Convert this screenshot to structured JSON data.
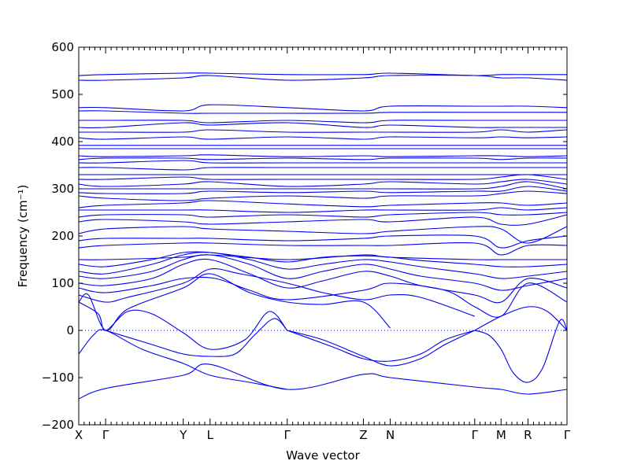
{
  "chart_data": {
    "type": "line",
    "title": "",
    "xlabel": "Wave vector",
    "ylabel": "Frequency",
    "ylabel_unit": "(cm⁻¹)",
    "ylim": [
      -200,
      600
    ],
    "yticks": [
      -200,
      -100,
      0,
      100,
      200,
      300,
      400,
      500,
      600
    ],
    "xlim": [
      0,
      1
    ],
    "high_symmetry_points": [
      {
        "label": "X",
        "x": 0.0
      },
      {
        "label": "Γ",
        "x": 0.055
      },
      {
        "label": "Y",
        "x": 0.214
      },
      {
        "label": "L",
        "x": 0.269
      },
      {
        "label": "Γ",
        "x": 0.427
      },
      {
        "label": "Z",
        "x": 0.583
      },
      {
        "label": "N",
        "x": 0.638
      },
      {
        "label": "Γ",
        "x": 0.811
      },
      {
        "label": "M",
        "x": 0.865
      },
      {
        "label": "R",
        "x": 0.92
      },
      {
        "label": "Γ",
        "x": 1.0
      }
    ],
    "zero_line": true,
    "grid": false,
    "series_color": "#0000ee",
    "zero_line_color": "#0000ee",
    "series": [
      {
        "x": [
          0,
          0.055,
          0.214,
          0.269,
          0.427,
          0.583,
          0.638,
          0.811,
          0.865,
          0.92,
          1.0
        ],
        "values": [
          -145,
          -123,
          -95,
          -72,
          -125,
          -93,
          -100,
          -120,
          -125,
          -135,
          -125
        ]
      },
      {
        "x": [
          0,
          0.03,
          0.055,
          0.13,
          0.214,
          0.269,
          0.35,
          0.427
        ],
        "values": [
          -50,
          -10,
          0,
          -40,
          -70,
          -95,
          -110,
          -125
        ]
      },
      {
        "x": [
          0.055,
          0.15,
          0.214,
          0.269,
          0.32,
          0.36,
          0.4,
          0.427
        ],
        "values": [
          0,
          -30,
          -50,
          -55,
          -50,
          -10,
          25,
          0
        ]
      },
      {
        "x": [
          0.427,
          0.5,
          0.583,
          0.638,
          0.7,
          0.75,
          0.811
        ],
        "values": [
          0,
          -20,
          -55,
          -75,
          -60,
          -30,
          0
        ]
      },
      {
        "x": [
          0.427,
          0.52,
          0.583,
          0.638,
          0.7,
          0.75,
          0.811
        ],
        "values": [
          0,
          -35,
          -60,
          -65,
          -50,
          -20,
          0
        ]
      },
      {
        "x": [
          0.811,
          0.84,
          0.865,
          0.89,
          0.92,
          0.95,
          0.985,
          1.0
        ],
        "values": [
          0,
          -10,
          -40,
          -90,
          -110,
          -80,
          20,
          0
        ]
      },
      {
        "x": [
          0.811,
          0.865,
          0.92,
          0.96,
          1.0
        ],
        "values": [
          0,
          30,
          50,
          40,
          0
        ]
      },
      {
        "x": [
          0,
          0.04,
          0.055,
          0.1,
          0.15,
          0.214,
          0.269,
          0.34,
          0.39,
          0.427
        ],
        "values": [
          60,
          35,
          0,
          40,
          35,
          -5,
          -40,
          -20,
          40,
          0
        ]
      },
      {
        "x": [
          0,
          0.02,
          0.055,
          0.1,
          0.214,
          0.269,
          0.35,
          0.427,
          0.5,
          0.583,
          0.638
        ],
        "values": [
          60,
          75,
          0,
          45,
          90,
          120,
          80,
          60,
          55,
          60,
          5
        ]
      },
      {
        "x": [
          0,
          0.055,
          0.1,
          0.214,
          0.269,
          0.33,
          0.427,
          0.5,
          0.583,
          0.638,
          0.7,
          0.811
        ],
        "values": [
          75,
          60,
          70,
          100,
          130,
          120,
          100,
          80,
          65,
          75,
          70,
          30
        ]
      },
      {
        "x": [
          0,
          0.055,
          0.15,
          0.214,
          0.28,
          0.35,
          0.427,
          0.583,
          0.638,
          0.75,
          0.811,
          0.865,
          0.92,
          1.0
        ],
        "values": [
          90,
          80,
          95,
          110,
          110,
          85,
          65,
          85,
          100,
          85,
          50,
          30,
          100,
          60
        ]
      },
      {
        "x": [
          0,
          0.055,
          0.15,
          0.214,
          0.269,
          0.35,
          0.427,
          0.5,
          0.583,
          0.638,
          0.7,
          0.811,
          0.865,
          0.92,
          1.0
        ],
        "values": [
          100,
          95,
          110,
          140,
          150,
          120,
          90,
          105,
          125,
          115,
          95,
          75,
          60,
          110,
          90
        ]
      },
      {
        "x": [
          0,
          0.055,
          0.15,
          0.214,
          0.269,
          0.35,
          0.427,
          0.5,
          0.583,
          0.638,
          0.7,
          0.811,
          0.865,
          0.92,
          1.0
        ],
        "values": [
          115,
          110,
          125,
          150,
          160,
          140,
          110,
          125,
          140,
          130,
          115,
          100,
          85,
          95,
          110
        ]
      },
      {
        "x": [
          0,
          0.055,
          0.15,
          0.214,
          0.269,
          0.35,
          0.427,
          0.5,
          0.583,
          0.638,
          0.7,
          0.811,
          0.865,
          0.92,
          1.0
        ],
        "values": [
          125,
          120,
          140,
          160,
          165,
          150,
          130,
          140,
          150,
          145,
          135,
          120,
          110,
          115,
          125
        ]
      },
      {
        "x": [
          0,
          0.055,
          0.15,
          0.214,
          0.269,
          0.35,
          0.427,
          0.5,
          0.583,
          0.638,
          0.7,
          0.811,
          0.865,
          0.92,
          1.0
        ],
        "values": [
          140,
          135,
          150,
          165,
          165,
          155,
          145,
          155,
          158,
          155,
          148,
          140,
          135,
          135,
          140
        ]
      },
      {
        "x": [
          0,
          0.055,
          0.214,
          0.269,
          0.427,
          0.583,
          0.638,
          0.811,
          0.865,
          0.92,
          1.0
        ],
        "values": [
          150,
          150,
          155,
          160,
          150,
          160,
          155,
          150,
          150,
          150,
          150
        ]
      },
      {
        "x": [
          0,
          0.055,
          0.214,
          0.269,
          0.427,
          0.583,
          0.638,
          0.811,
          0.865,
          0.92,
          1.0
        ],
        "values": [
          175,
          180,
          185,
          185,
          180,
          180,
          180,
          185,
          160,
          180,
          180
        ]
      },
      {
        "x": [
          0,
          0.055,
          0.214,
          0.269,
          0.427,
          0.583,
          0.638,
          0.811,
          0.865,
          0.92,
          1.0
        ],
        "values": [
          190,
          195,
          195,
          195,
          190,
          195,
          200,
          200,
          175,
          190,
          200
        ]
      },
      {
        "x": [
          0,
          0.055,
          0.214,
          0.269,
          0.427,
          0.583,
          0.638,
          0.811,
          0.865,
          0.92,
          1.0
        ],
        "values": [
          205,
          215,
          220,
          215,
          210,
          205,
          210,
          220,
          215,
          185,
          220
        ]
      },
      {
        "x": [
          0,
          0.055,
          0.214,
          0.269,
          0.427,
          0.583,
          0.638,
          0.811,
          0.865,
          0.92,
          1.0
        ],
        "values": [
          230,
          235,
          230,
          225,
          230,
          235,
          230,
          240,
          225,
          225,
          245
        ]
      },
      {
        "x": [
          0,
          0.055,
          0.214,
          0.269,
          0.427,
          0.583,
          0.638,
          0.811,
          0.865,
          0.92,
          1.0
        ],
        "values": [
          240,
          245,
          245,
          240,
          245,
          240,
          245,
          250,
          245,
          245,
          250
        ]
      },
      {
        "x": [
          0,
          0.055,
          0.214,
          0.269,
          0.427,
          0.583,
          0.638,
          0.811,
          0.865,
          0.92,
          1.0
        ],
        "values": [
          255,
          255,
          255,
          255,
          250,
          255,
          255,
          255,
          260,
          255,
          260
        ]
      },
      {
        "x": [
          0,
          0.055,
          0.214,
          0.269,
          0.427,
          0.583,
          0.638,
          0.811,
          0.865,
          0.92,
          1.0
        ],
        "values": [
          260,
          265,
          270,
          275,
          268,
          262,
          265,
          270,
          270,
          265,
          270
        ]
      },
      {
        "x": [
          0,
          0.055,
          0.214,
          0.269,
          0.427,
          0.583,
          0.638,
          0.811,
          0.865,
          0.92,
          1.0
        ],
        "values": [
          285,
          280,
          275,
          280,
          285,
          280,
          285,
          285,
          290,
          295,
          290
        ]
      },
      {
        "x": [
          0,
          0.055,
          0.214,
          0.269,
          0.427,
          0.583,
          0.638,
          0.811,
          0.865,
          0.92,
          1.0
        ],
        "values": [
          292,
          290,
          290,
          295,
          292,
          295,
          292,
          295,
          295,
          305,
          295
        ]
      },
      {
        "x": [
          0,
          0.055,
          0.214,
          0.269,
          0.427,
          0.583,
          0.638,
          0.811,
          0.865,
          0.92,
          1.0
        ],
        "values": [
          300,
          300,
          300,
          300,
          300,
          300,
          300,
          300,
          305,
          315,
          300
        ]
      },
      {
        "x": [
          0,
          0.055,
          0.214,
          0.269,
          0.427,
          0.583,
          0.638,
          0.811,
          0.865,
          0.92,
          1.0
        ],
        "values": [
          310,
          305,
          310,
          315,
          305,
          310,
          315,
          310,
          315,
          320,
          310
        ]
      },
      {
        "x": [
          0,
          0.055,
          0.214,
          0.269,
          0.427,
          0.583,
          0.638,
          0.811,
          0.865,
          0.92,
          1.0
        ],
        "values": [
          320,
          320,
          325,
          320,
          320,
          320,
          320,
          320,
          325,
          330,
          320
        ]
      },
      {
        "x": [
          0,
          0.055,
          0.214,
          0.269,
          0.427,
          0.583,
          0.638,
          0.811,
          0.865,
          0.92,
          1.0
        ],
        "values": [
          330,
          330,
          330,
          330,
          330,
          330,
          330,
          330,
          330,
          330,
          330
        ]
      },
      {
        "x": [
          0,
          0.055,
          0.214,
          0.269,
          0.427,
          0.583,
          0.638,
          0.811,
          0.865,
          0.92,
          1.0
        ],
        "values": [
          345,
          345,
          340,
          345,
          345,
          345,
          345,
          345,
          345,
          345,
          345
        ]
      },
      {
        "x": [
          0,
          0.055,
          0.214,
          0.269,
          0.427,
          0.583,
          0.638,
          0.811,
          0.865,
          0.92,
          1.0
        ],
        "values": [
          355,
          355,
          360,
          355,
          355,
          355,
          355,
          355,
          355,
          355,
          355
        ]
      },
      {
        "x": [
          0,
          0.055,
          0.214,
          0.269,
          0.427,
          0.583,
          0.638,
          0.811,
          0.865,
          0.92,
          1.0
        ],
        "values": [
          362,
          365,
          365,
          362,
          365,
          362,
          365,
          365,
          362,
          365,
          365
        ]
      },
      {
        "x": [
          0,
          0.055,
          0.214,
          0.269,
          0.427,
          0.583,
          0.638,
          0.811,
          0.865,
          0.92,
          1.0
        ],
        "values": [
          370,
          368,
          370,
          372,
          368,
          370,
          368,
          370,
          370,
          368,
          370
        ]
      },
      {
        "x": [
          0,
          0.055,
          0.214,
          0.269,
          0.427,
          0.583,
          0.638,
          0.811,
          0.865,
          0.92,
          1.0
        ],
        "values": [
          385,
          385,
          385,
          385,
          385,
          385,
          385,
          385,
          385,
          385,
          385
        ]
      },
      {
        "x": [
          0,
          0.055,
          0.214,
          0.269,
          0.427,
          0.583,
          0.638,
          0.811,
          0.865,
          0.92,
          1.0
        ],
        "values": [
          392,
          392,
          392,
          392,
          392,
          392,
          392,
          392,
          392,
          392,
          392
        ]
      },
      {
        "x": [
          0,
          0.055,
          0.214,
          0.269,
          0.427,
          0.583,
          0.638,
          0.811,
          0.865,
          0.92,
          1.0
        ],
        "values": [
          408,
          405,
          410,
          405,
          410,
          405,
          410,
          408,
          410,
          408,
          410
        ]
      },
      {
        "x": [
          0,
          0.055,
          0.214,
          0.269,
          0.427,
          0.583,
          0.638,
          0.811,
          0.865,
          0.92,
          1.0
        ],
        "values": [
          420,
          420,
          420,
          425,
          420,
          420,
          420,
          420,
          425,
          420,
          425
        ]
      },
      {
        "x": [
          0,
          0.055,
          0.214,
          0.269,
          0.427,
          0.583,
          0.638,
          0.811,
          0.865,
          0.92,
          1.0
        ],
        "values": [
          430,
          430,
          440,
          435,
          440,
          430,
          435,
          430,
          430,
          430,
          430
        ]
      },
      {
        "x": [
          0,
          0.055,
          0.214,
          0.269,
          0.427,
          0.583,
          0.638,
          0.811,
          0.865,
          0.92,
          1.0
        ],
        "values": [
          445,
          445,
          445,
          440,
          445,
          440,
          445,
          445,
          445,
          445,
          445
        ]
      },
      {
        "x": [
          0,
          0.055,
          0.214,
          0.269,
          0.427,
          0.583,
          0.638,
          0.811,
          0.865,
          0.92,
          1.0
        ],
        "values": [
          465,
          465,
          460,
          460,
          460,
          460,
          462,
          462,
          462,
          462,
          462
        ]
      },
      {
        "x": [
          0,
          0.055,
          0.214,
          0.269,
          0.427,
          0.583,
          0.638,
          0.811,
          0.865,
          0.92,
          1.0
        ],
        "values": [
          472,
          472,
          465,
          478,
          472,
          465,
          475,
          475,
          475,
          475,
          472
        ]
      },
      {
        "x": [
          0,
          0.055,
          0.214,
          0.269,
          0.427,
          0.583,
          0.638,
          0.811,
          0.865,
          0.92,
          1.0
        ],
        "values": [
          530,
          530,
          535,
          540,
          530,
          535,
          540,
          540,
          535,
          535,
          530
        ]
      },
      {
        "x": [
          0,
          0.055,
          0.214,
          0.269,
          0.427,
          0.583,
          0.638,
          0.811,
          0.865,
          0.92,
          1.0
        ],
        "values": [
          540,
          542,
          545,
          545,
          542,
          542,
          545,
          540,
          542,
          542,
          542
        ]
      }
    ]
  }
}
